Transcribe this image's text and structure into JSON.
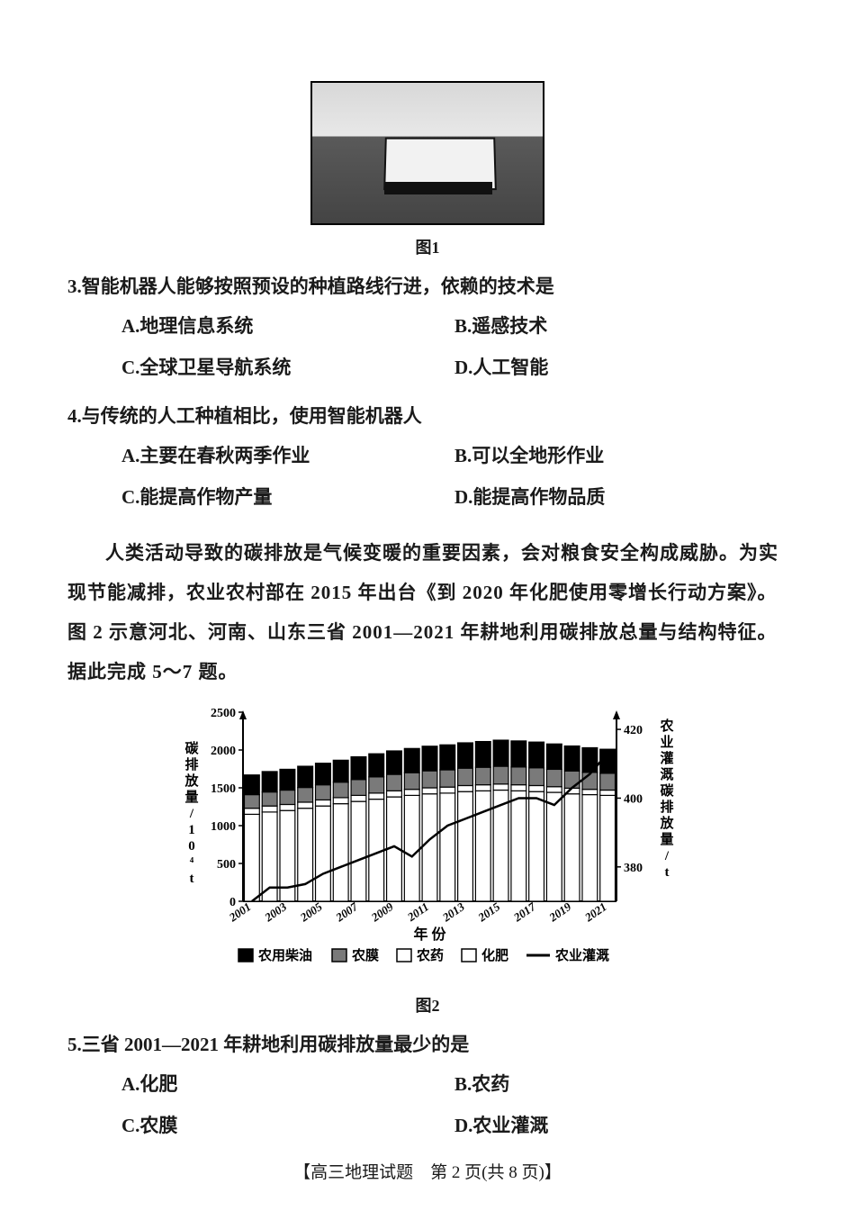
{
  "figure1": {
    "caption": "图1"
  },
  "q3": {
    "stem": "3.智能机器人能够按照预设的种植路线行进，依赖的技术是",
    "A": "A.地理信息系统",
    "B": "B.遥感技术",
    "C": "C.全球卫星导航系统",
    "D": "D.人工智能"
  },
  "q4": {
    "stem": "4.与传统的人工种植相比，使用智能机器人",
    "A": "A.主要在春秋两季作业",
    "B": "B.可以全地形作业",
    "C": "C.能提高作物产量",
    "D": "D.能提高作物品质"
  },
  "passage": "人类活动导致的碳排放是气候变暖的重要因素，会对粮食安全构成威胁。为实现节能减排，农业农村部在 2015 年出台《到 2020 年化肥使用零增长行动方案》。图 2 示意河北、河南、山东三省 2001—2021 年耕地利用碳排放总量与结构特征。据此完成 5～7 题。",
  "chart": {
    "type": "bar+line",
    "years": [
      "2001",
      "2002",
      "2003",
      "2004",
      "2005",
      "2006",
      "2007",
      "2008",
      "2009",
      "2010",
      "2011",
      "2012",
      "2013",
      "2014",
      "2015",
      "2016",
      "2017",
      "2018",
      "2019",
      "2020",
      "2021"
    ],
    "y_left_label": "碳排放量/10⁴t",
    "y_right_label": "农业灌溉碳排放量/t",
    "y_left_ticks": [
      0,
      500,
      1000,
      1500,
      2000,
      2500
    ],
    "y_left_lim": [
      0,
      2500
    ],
    "y_right_ticks": [
      380,
      400,
      420
    ],
    "y_right_lim": [
      370,
      425
    ],
    "x_label": "年 份",
    "series": {
      "huafei": {
        "label": "化肥",
        "color": "#ffffff",
        "border": "#000000",
        "values": [
          1150,
          1180,
          1200,
          1230,
          1260,
          1290,
          1320,
          1350,
          1380,
          1400,
          1420,
          1430,
          1450,
          1460,
          1470,
          1460,
          1450,
          1440,
          1420,
          1410,
          1400
        ]
      },
      "nongyao": {
        "label": "农药",
        "color": "#ffffff",
        "border": "#000000",
        "values": [
          80,
          80,
          80,
          80,
          80,
          80,
          80,
          80,
          80,
          80,
          80,
          80,
          80,
          80,
          80,
          80,
          80,
          75,
          75,
          70,
          70
        ]
      },
      "nongmo": {
        "label": "农膜",
        "color": "#7a7a7a",
        "border": "#000000",
        "values": [
          180,
          185,
          190,
          195,
          200,
          205,
          210,
          215,
          218,
          220,
          225,
          228,
          230,
          232,
          235,
          235,
          235,
          230,
          228,
          225,
          222
        ]
      },
      "chaiyou": {
        "label": "农用柴油",
        "color": "#000000",
        "border": "#000000",
        "values": [
          260,
          270,
          275,
          280,
          285,
          290,
          300,
          305,
          310,
          320,
          325,
          330,
          335,
          340,
          345,
          345,
          340,
          335,
          330,
          325,
          318
        ]
      }
    },
    "line": {
      "label": "农业灌溉",
      "color": "#000000",
      "values": [
        370,
        374,
        374,
        375,
        378,
        380,
        382,
        384,
        386,
        383,
        388,
        392,
        394,
        396,
        398,
        400,
        400,
        398,
        403,
        407,
        413
      ]
    },
    "legend": [
      "农用柴油",
      "农膜",
      "农药",
      "化肥",
      "农业灌溉"
    ],
    "background_color": "#ffffff",
    "axis_color": "#000000",
    "tick_fontsize": 14,
    "label_fontsize": 16,
    "bar_gap": 0.15
  },
  "figure2": {
    "caption": "图2"
  },
  "q5": {
    "stem": "5.三省 2001—2021 年耕地利用碳排放量最少的是",
    "A": "A.化肥",
    "B": "B.农药",
    "C": "C.农膜",
    "D": "D.农业灌溉"
  },
  "footer": "【高三地理试题　第 2 页(共 8 页)】"
}
